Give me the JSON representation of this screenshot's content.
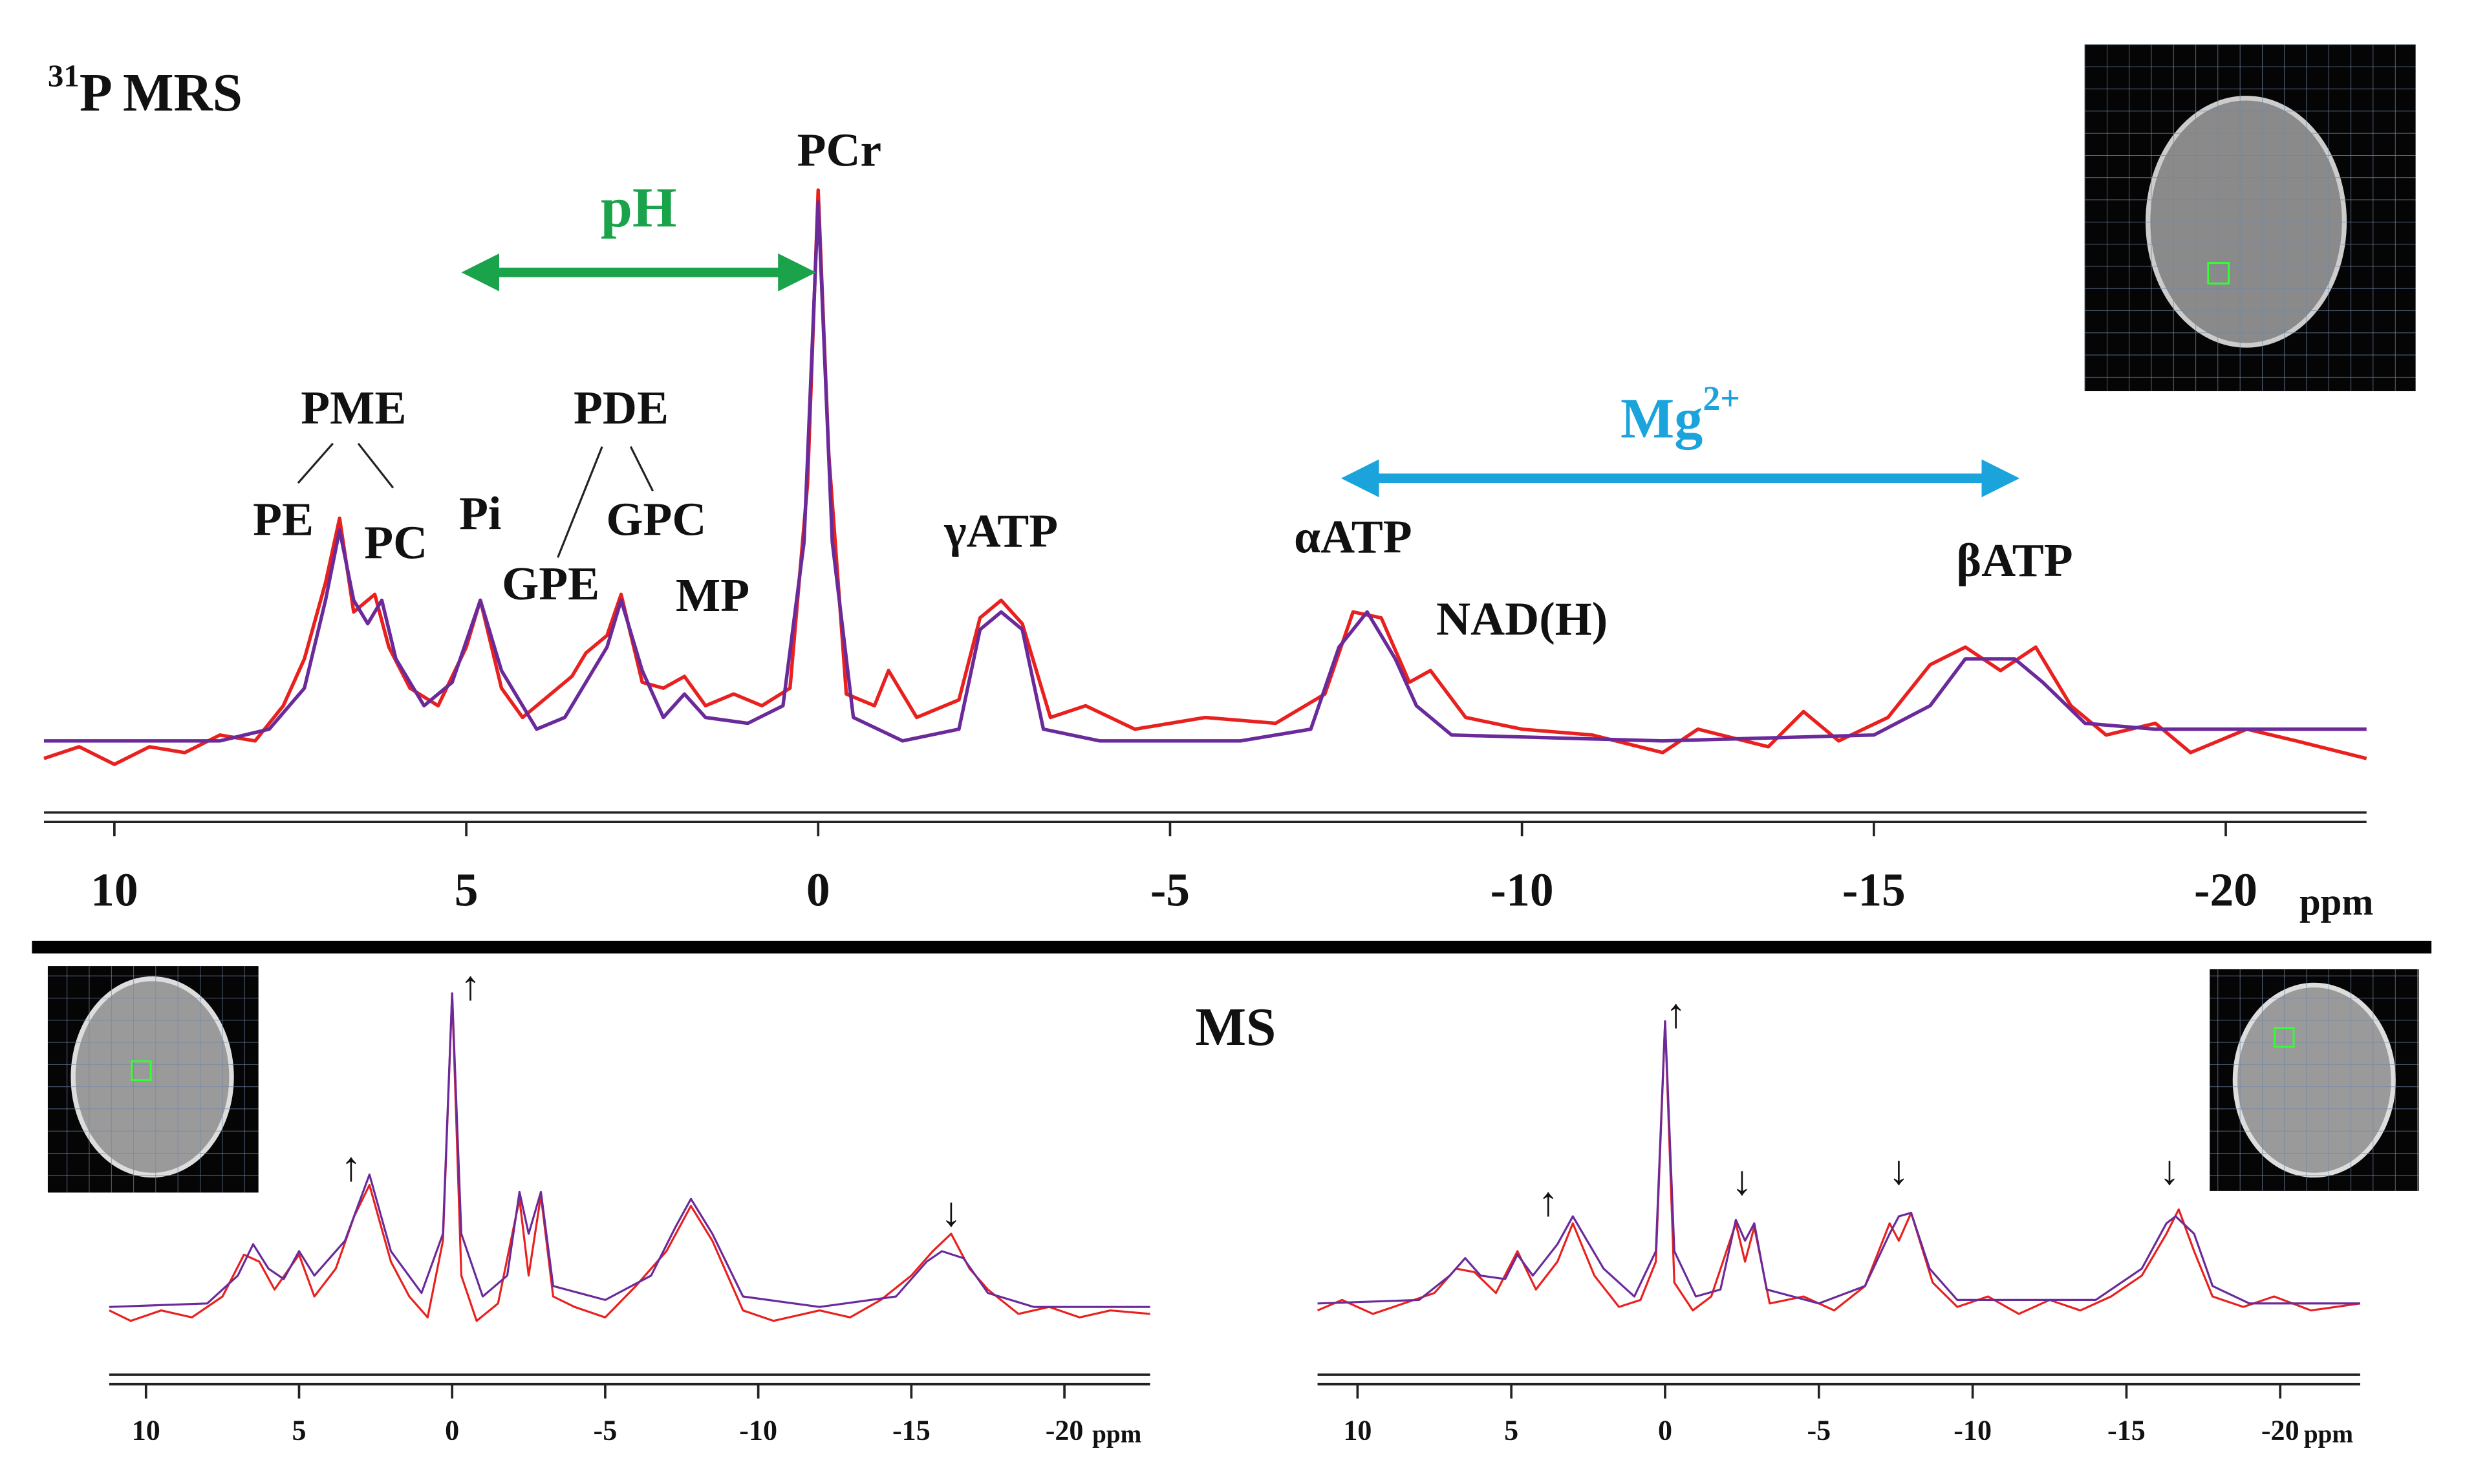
{
  "chart_data": [
    {
      "type": "line",
      "title_sup": "31",
      "title": "P MRS",
      "xlabel": "ppm",
      "xlim": [
        11,
        -22
      ],
      "ylim": [
        0,
        100
      ],
      "xticks": [
        10,
        5,
        0,
        -5,
        -10,
        -15,
        -20
      ],
      "series": [
        {
          "color": "#e8211f",
          "x": [
            11,
            10.5,
            10,
            9.5,
            9,
            8.5,
            8.0,
            7.6,
            7.3,
            7.0,
            6.8,
            6.6,
            6.3,
            6.1,
            5.8,
            5.4,
            5.0,
            4.8,
            4.5,
            4.2,
            3.8,
            3.5,
            3.3,
            3.0,
            2.8,
            2.5,
            2.2,
            1.9,
            1.6,
            1.2,
            0.8,
            0.4,
            0.15,
            0,
            -0.15,
            -0.4,
            -0.8,
            -1.0,
            -1.4,
            -2.0,
            -2.3,
            -2.6,
            -2.9,
            -3.3,
            -3.8,
            -4.5,
            -5.5,
            -6.5,
            -7.2,
            -7.6,
            -8.0,
            -8.4,
            -8.7,
            -9.2,
            -10,
            -11,
            -12,
            -12.5,
            -13.5,
            -14,
            -14.5,
            -15.2,
            -15.8,
            -16.3,
            -16.8,
            -17.3,
            -17.8,
            -18.3,
            -19,
            -19.5,
            -20.3,
            -21,
            -22
          ],
          "values": [
            3,
            5,
            2,
            5,
            4,
            7,
            6,
            12,
            20,
            33,
            44,
            28,
            31,
            22,
            15,
            12,
            22,
            30,
            15,
            10,
            14,
            17,
            21,
            24,
            31,
            16,
            15,
            17,
            12,
            14,
            12,
            15,
            50,
            100,
            55,
            14,
            12,
            18,
            10,
            13,
            27,
            30,
            26,
            10,
            12,
            8,
            10,
            9,
            14,
            28,
            27,
            16,
            18,
            10,
            8,
            7,
            4,
            8,
            5,
            11,
            6,
            10,
            19,
            22,
            18,
            22,
            12,
            7,
            9,
            4,
            8,
            6,
            3
          ]
        },
        {
          "color": "#6a2a9a",
          "x": [
            11,
            8.5,
            7.8,
            7.3,
            7.0,
            6.8,
            6.6,
            6.4,
            6.2,
            6.0,
            5.6,
            5.2,
            4.8,
            4.5,
            4.0,
            3.6,
            3.3,
            3.0,
            2.8,
            2.5,
            2.2,
            1.9,
            1.6,
            1.0,
            0.5,
            0.2,
            0,
            -0.2,
            -0.5,
            -1.2,
            -2.0,
            -2.3,
            -2.6,
            -2.9,
            -3.2,
            -4.0,
            -6,
            -7.0,
            -7.4,
            -7.8,
            -8.2,
            -8.5,
            -9.0,
            -12,
            -15,
            -15.8,
            -16.3,
            -17.0,
            -17.4,
            -18,
            -19,
            -22
          ],
          "values": [
            6,
            6,
            8,
            15,
            30,
            42,
            30,
            26,
            30,
            20,
            12,
            16,
            30,
            18,
            8,
            10,
            16,
            22,
            30,
            18,
            10,
            14,
            10,
            9,
            12,
            40,
            98,
            40,
            10,
            6,
            8,
            25,
            28,
            25,
            8,
            6,
            6,
            8,
            22,
            28,
            20,
            12,
            7,
            6,
            7,
            12,
            20,
            20,
            16,
            9,
            8,
            8
          ]
        }
      ],
      "annotations": [
        {
          "text": "PCr",
          "x": -0.3,
          "y": 106
        },
        {
          "text": "PME",
          "x": 6.6,
          "y": 62
        },
        {
          "text": "PE",
          "x": 7.6,
          "y": 43
        },
        {
          "text": "PC",
          "x": 6.0,
          "y": 39
        },
        {
          "text": "Pi",
          "x": 4.8,
          "y": 44
        },
        {
          "text": "PDE",
          "x": 2.8,
          "y": 62
        },
        {
          "text": "GPE",
          "x": 3.8,
          "y": 32
        },
        {
          "text": "GPC",
          "x": 2.3,
          "y": 43
        },
        {
          "text": "MP",
          "x": 1.5,
          "y": 30
        },
        {
          "text": "γATP",
          "x": -2.6,
          "y": 41
        },
        {
          "text": "αATP",
          "x": -7.6,
          "y": 40
        },
        {
          "text": "NAD(H)",
          "x": -10.0,
          "y": 26
        },
        {
          "text": "βATP",
          "x": -17.0,
          "y": 36
        }
      ],
      "ranges": [
        {
          "label": "pH",
          "x": [
            4.8,
            0.3
          ],
          "color": "#1aa34a"
        },
        {
          "label": "Mg",
          "sup": "2+",
          "x": [
            -7.7,
            -16.8
          ],
          "color": "#1ba3dc"
        }
      ]
    },
    {
      "type": "line",
      "title": "MS",
      "xlabel": "ppm",
      "xlim": [
        11.2,
        -22.8
      ],
      "ylim": [
        0,
        100
      ],
      "xticks": [
        10,
        5,
        0,
        -5,
        -10,
        -15,
        -20
      ],
      "series": [
        {
          "color": "#e8211f",
          "x": [
            11.2,
            10.5,
            9.5,
            8.5,
            7.5,
            6.8,
            6.3,
            5.8,
            5.0,
            4.5,
            3.8,
            3.2,
            2.7,
            2.0,
            1.4,
            0.8,
            0.3,
            0,
            -0.3,
            -0.8,
            -1.5,
            -2.2,
            -2.5,
            -2.9,
            -3.3,
            -4,
            -5,
            -6,
            -7,
            -7.8,
            -8.5,
            -9.5,
            -10.5,
            -12,
            -13,
            -14,
            -15,
            -15.7,
            -16.3,
            -16.9,
            -17.5,
            -18.5,
            -19.5,
            -20.5,
            -21.5,
            -22.8
          ],
          "values": [
            8,
            5,
            8,
            6,
            12,
            24,
            22,
            14,
            24,
            12,
            20,
            35,
            44,
            22,
            12,
            6,
            28,
            99,
            18,
            5,
            10,
            40,
            18,
            41,
            12,
            9,
            6,
            15,
            25,
            38,
            28,
            8,
            5,
            8,
            6,
            11,
            18,
            25,
            30,
            20,
            14,
            7,
            9,
            6,
            8,
            7
          ]
        },
        {
          "color": "#6a2a9a",
          "x": [
            11.2,
            8,
            7,
            6.5,
            6,
            5.5,
            5,
            4.5,
            3.5,
            2.7,
            2,
            1,
            0.3,
            0,
            -0.3,
            -1,
            -1.8,
            -2.2,
            -2.5,
            -2.9,
            -3.3,
            -5,
            -6.5,
            -7.3,
            -7.8,
            -8.5,
            -9.5,
            -12,
            -14.5,
            -15.5,
            -16,
            -16.7,
            -17.5,
            -19,
            -22.8
          ],
          "values": [
            9,
            10,
            18,
            27,
            20,
            17,
            25,
            18,
            28,
            47,
            25,
            13,
            30,
            99,
            30,
            12,
            18,
            42,
            30,
            42,
            15,
            11,
            18,
            32,
            40,
            30,
            12,
            9,
            12,
            22,
            25,
            23,
            13,
            9,
            9
          ]
        }
      ],
      "annotations": [
        {
          "text": "↑",
          "x": -0.6,
          "y": 100
        },
        {
          "text": "↑",
          "x": 3.3,
          "y": 48
        },
        {
          "text": "↓",
          "x": -16.3,
          "y": 35
        }
      ]
    },
    {
      "type": "line",
      "xlabel": "ppm",
      "xlim": [
        11.3,
        -22.6
      ],
      "ylim": [
        0,
        100
      ],
      "xticks": [
        10,
        5,
        0,
        -5,
        -10,
        -15,
        -20
      ],
      "series": [
        {
          "color": "#e8211f",
          "x": [
            11.3,
            10.5,
            9.5,
            8.5,
            7.5,
            6.8,
            6.2,
            5.5,
            4.8,
            4.2,
            3.5,
            3,
            2.3,
            1.5,
            0.8,
            0.3,
            0,
            -0.3,
            -0.9,
            -1.5,
            -2.3,
            -2.6,
            -2.9,
            -3.4,
            -4.5,
            -5.5,
            -6.5,
            -7.3,
            -7.6,
            -8,
            -8.7,
            -9.5,
            -10.5,
            -11.5,
            -12.5,
            -13.5,
            -14.5,
            -15.5,
            -16.3,
            -16.7,
            -17.2,
            -17.8,
            -18.8,
            -19.8,
            -21,
            -22.6
          ],
          "values": [
            8,
            11,
            7,
            10,
            13,
            20,
            19,
            13,
            25,
            14,
            22,
            33,
            18,
            9,
            11,
            22,
            91,
            16,
            8,
            12,
            33,
            22,
            32,
            10,
            12,
            8,
            15,
            33,
            28,
            36,
            16,
            9,
            12,
            7,
            11,
            8,
            12,
            18,
            30,
            37,
            25,
            12,
            9,
            12,
            8,
            10
          ]
        },
        {
          "color": "#6a2a9a",
          "x": [
            11.3,
            8,
            7,
            6.5,
            6,
            5.2,
            4.8,
            4.3,
            3.5,
            3,
            2,
            1,
            0.3,
            0,
            -0.3,
            -1,
            -1.8,
            -2.3,
            -2.6,
            -2.9,
            -3.3,
            -5,
            -6.5,
            -7.3,
            -7.6,
            -8,
            -8.6,
            -9.5,
            -14,
            -15.5,
            -16.3,
            -16.6,
            -17.2,
            -17.8,
            -19,
            -22.6
          ],
          "values": [
            10,
            11,
            18,
            23,
            18,
            17,
            24,
            18,
            27,
            35,
            20,
            12,
            25,
            91,
            25,
            12,
            14,
            34,
            28,
            33,
            14,
            10,
            15,
            30,
            35,
            36,
            20,
            11,
            11,
            20,
            33,
            35,
            30,
            15,
            10,
            10
          ]
        }
      ],
      "annotations": [
        {
          "text": "↑",
          "x": -0.35,
          "y": 92
        },
        {
          "text": "↑",
          "x": 3.8,
          "y": 38
        },
        {
          "text": "↓",
          "x": -2.5,
          "y": 44
        },
        {
          "text": "↓",
          "x": -7.6,
          "y": 47
        },
        {
          "text": "↓",
          "x": -16.4,
          "y": 47
        }
      ]
    }
  ]
}
